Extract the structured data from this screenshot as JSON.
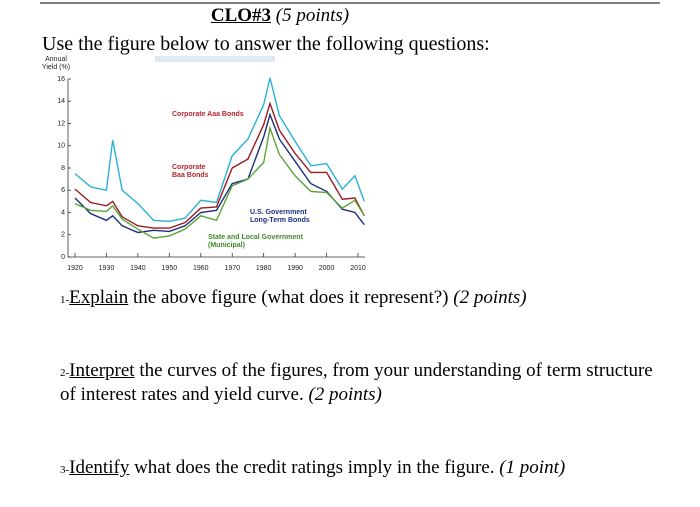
{
  "header": {
    "title": "CLO#3",
    "points": "(5 points)"
  },
  "instruction": "Use the figure below to answer the following questions:",
  "chart_data": {
    "type": "line",
    "ylabel": [
      "Annual",
      "Yield (%)"
    ],
    "x": [
      1920,
      1925,
      1930,
      1932,
      1935,
      1940,
      1945,
      1950,
      1955,
      1960,
      1965,
      1970,
      1975,
      1980,
      1982,
      1985,
      1990,
      1995,
      2000,
      2005,
      2009,
      2012
    ],
    "series": [
      {
        "name": "Corporate Baa Bonds",
        "color": "#2ab0d8",
        "values": [
          7.5,
          6.3,
          6.0,
          10.5,
          6.0,
          4.8,
          3.3,
          3.2,
          3.5,
          5.1,
          4.9,
          9.1,
          10.6,
          13.7,
          16.1,
          12.7,
          10.4,
          8.2,
          8.4,
          6.1,
          7.3,
          5.0
        ]
      },
      {
        "name": "Corporate Aaa Bonds",
        "color": "#9b1b22",
        "values": [
          6.1,
          4.9,
          4.6,
          5.0,
          3.6,
          2.8,
          2.6,
          2.6,
          3.1,
          4.4,
          4.5,
          8.0,
          8.8,
          11.9,
          13.8,
          11.4,
          9.3,
          7.6,
          7.6,
          5.2,
          5.3,
          3.7
        ]
      },
      {
        "name": "U.S. Government Long-Term Bonds",
        "color": "#1d2f7a",
        "values": [
          5.3,
          3.9,
          3.3,
          3.7,
          2.8,
          2.2,
          2.4,
          2.3,
          2.8,
          4.0,
          4.2,
          6.6,
          7.0,
          10.8,
          12.8,
          10.6,
          8.6,
          6.6,
          5.9,
          4.3,
          4.0,
          2.9
        ]
      },
      {
        "name": "State and Local Government (Municipal)",
        "color": "#5aa53a",
        "values": [
          4.8,
          4.2,
          4.1,
          4.6,
          3.4,
          2.5,
          1.7,
          1.9,
          2.5,
          3.7,
          3.3,
          6.4,
          7.0,
          8.5,
          11.6,
          9.2,
          7.3,
          5.9,
          5.8,
          4.4,
          5.1,
          3.7
        ]
      }
    ],
    "xlim": [
      1920,
      2013
    ],
    "ylim": [
      0,
      16
    ],
    "xticks": [
      1920,
      1930,
      1940,
      1950,
      1960,
      1970,
      1980,
      1990,
      2000,
      2010
    ],
    "yticks": [
      0,
      2,
      4,
      6,
      8,
      10,
      12,
      14,
      16
    ]
  },
  "questions": [
    {
      "number": "1-",
      "verb": "Explain",
      "text": "the above figure (what does it represent?)",
      "points": "(2 points)"
    },
    {
      "number": "2-",
      "verb": "Interpret",
      "text": "the curves of the figures, from your understanding of term structure of interest rates and yield curve.",
      "points": "(2 points)"
    },
    {
      "number": "3-",
      "verb": "Identify",
      "text": "what does the credit ratings imply in the figure.",
      "points": "(1 point)"
    }
  ]
}
